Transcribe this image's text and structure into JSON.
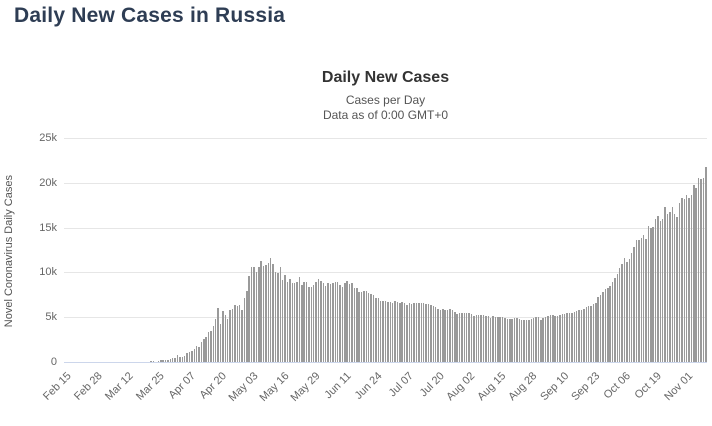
{
  "page": {
    "heading": "Daily New Cases in Russia"
  },
  "chart_data": {
    "type": "bar",
    "title": "Daily New Cases",
    "subtitle": [
      "Cases per Day",
      "Data as of 0:00 GMT+0"
    ],
    "ylabel": "Novel Coronavirus Daily Cases",
    "xlabel": "",
    "ylim": [
      0,
      25000
    ],
    "y_ticks": [
      "0",
      "5k",
      "10k",
      "15k",
      "20k",
      "25k"
    ],
    "grid": "horizontal",
    "legend": "none",
    "bar_color": "#9a9a9a",
    "gridline_color": "#e6e6e6",
    "axis_line_color": "#ccd6eb",
    "start_date": "Feb 15",
    "end_date": "Nov 09",
    "x_tick_interval_days": 13,
    "x_tick_labels": [
      "Feb 15",
      "Feb 28",
      "Mar 12",
      "Mar 25",
      "Apr 07",
      "Apr 20",
      "May 03",
      "May 16",
      "May 29",
      "Jun 11",
      "Jun 24",
      "Jul 07",
      "Jul 20",
      "Aug 02",
      "Aug 15",
      "Aug 28",
      "Sep 10",
      "Sep 23",
      "Oct 06",
      "Oct 19",
      "Nov 01"
    ],
    "values": [
      0,
      0,
      0,
      0,
      0,
      0,
      0,
      0,
      0,
      0,
      0,
      0,
      0,
      0,
      0,
      0,
      0,
      0,
      0,
      3,
      6,
      1,
      3,
      3,
      3,
      8,
      6,
      11,
      14,
      4,
      30,
      21,
      33,
      52,
      54,
      53,
      61,
      71,
      57,
      163,
      182,
      196,
      228,
      270,
      302,
      501,
      440,
      771,
      601,
      582,
      658,
      954,
      1154,
      1175,
      1459,
      1786,
      1667,
      2186,
      2558,
      2774,
      3388,
      3448,
      4070,
      4785,
      6060,
      4268,
      5642,
      5236,
      4774,
      5849,
      5966,
      6361,
      6198,
      6411,
      5841,
      7099,
      7933,
      9623,
      10633,
      10581,
      10102,
      10559,
      11231,
      10699,
      10817,
      11012,
      11656,
      10899,
      10028,
      9974,
      10598,
      9200,
      9709,
      8926,
      9263,
      8764,
      8849,
      8894,
      9434,
      8599,
      8946,
      8915,
      8338,
      8371,
      8572,
      8952,
      9268,
      9035,
      8863,
      8536,
      8831,
      8726,
      8855,
      8984,
      8985,
      8595,
      8404,
      8779,
      8987,
      8706,
      8835,
      8246,
      8248,
      7843,
      7790,
      7972,
      7889,
      7728,
      7600,
      7425,
      7176,
      7113,
      6800,
      6852,
      6852,
      6719,
      6693,
      6556,
      6760,
      6718,
      6632,
      6736,
      6611,
      6368,
      6562,
      6509,
      6635,
      6611,
      6537,
      6615,
      6537,
      6422,
      6428,
      6406,
      6234,
      6109,
      5940,
      5842,
      5862,
      5848,
      5811,
      5871,
      5765,
      5635,
      5395,
      5475,
      5509,
      5482,
      5462,
      5427,
      5394,
      5159,
      5204,
      5267,
      5241,
      5212,
      5189,
      5118,
      4945,
      5102,
      5057,
      5065,
      5061,
      4969,
      4892,
      4748,
      4790,
      4785,
      4870,
      4921,
      4852,
      4744,
      4696,
      4676,
      4711,
      4829,
      4941,
      4980,
      4993,
      4729,
      4952,
      4995,
      5110,
      5205,
      5195,
      5185,
      5099,
      5218,
      5310,
      5388,
      5488,
      5449,
      5509,
      5529,
      5670,
      5762,
      5833,
      5905,
      6148,
      6196,
      6215,
      6431,
      6595,
      7212,
      7523,
      7867,
      8135,
      8232,
      8481,
      8945,
      9412,
      9859,
      10499,
      10888,
      11615,
      11115,
      11493,
      12126,
      12846,
      13634,
      13592,
      13868,
      14231,
      13754,
      15150,
      14922,
      15099,
      15982,
      16319,
      15700,
      15971,
      17340,
      16521,
      16710,
      17347,
      16550,
      16202,
      17717,
      18283,
      18140,
      18665,
      18257,
      18648,
      19768,
      19404,
      20582,
      20396,
      20498,
      21798
    ]
  }
}
